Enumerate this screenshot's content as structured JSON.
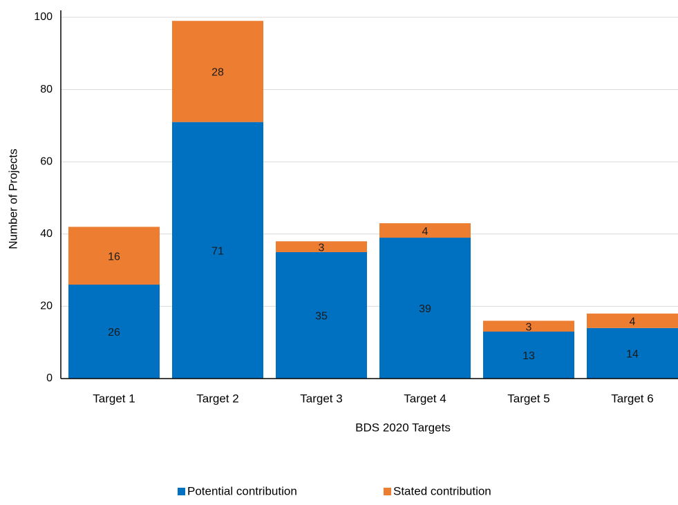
{
  "chart_data": {
    "type": "stacked_bar",
    "x_label": "BDS 2020 Targets",
    "y_label": "Number of Projects",
    "categories": [
      "Target 1",
      "Target 2",
      "Target 3",
      "Target 4",
      "Target 5",
      "Target 6"
    ],
    "series": [
      {
        "name": "Potential contribution",
        "color": "#0070c0",
        "values": [
          26,
          71,
          35,
          39,
          13,
          14
        ]
      },
      {
        "name": "Stated contribution",
        "color": "#ed7d31",
        "values": [
          16,
          28,
          3,
          4,
          3,
          4
        ]
      }
    ],
    "ylim": [
      0,
      100
    ],
    "yticks": [
      0,
      20,
      40,
      60,
      80,
      100
    ],
    "grid": true,
    "legend": "bottom"
  }
}
